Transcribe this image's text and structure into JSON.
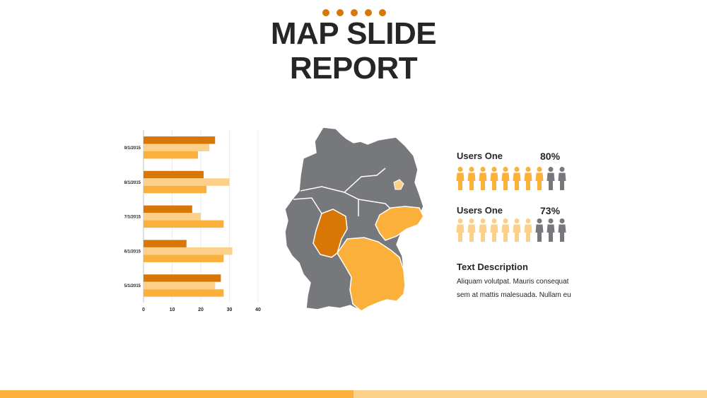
{
  "slide": {
    "title_line1": "MAP SLIDE",
    "title_line2": "REPORT"
  },
  "colors": {
    "dark_orange": "#D97706",
    "orange": "#FBB03B",
    "light_orange": "#FDD08A",
    "gray": "#77787B",
    "title": "#262626"
  },
  "chart_data": {
    "type": "bar",
    "orientation": "horizontal",
    "categories": [
      "9/1/2015",
      "8/1/2015",
      "7/1/2015",
      "6/1/2015",
      "5/1/2015"
    ],
    "series": [
      {
        "values": [
          25,
          21,
          17,
          15,
          27
        ]
      },
      {
        "values": [
          23,
          30,
          20,
          31,
          25
        ]
      },
      {
        "values": [
          19,
          22,
          28,
          28,
          28
        ]
      }
    ],
    "xlim": [
      0,
      40
    ],
    "x_ticks": [
      "0",
      "10",
      "20",
      "30",
      "40"
    ],
    "grid": true
  },
  "stats": [
    {
      "label": "Users One",
      "percent": "80%",
      "filled": 8,
      "total": 10
    },
    {
      "label": "Users One",
      "percent": "73%",
      "filled": 7,
      "total": 10
    }
  ],
  "description": {
    "title": "Text Description",
    "line1": "Aliquam volutpat. Mauris consequat",
    "line2": "sem at mattis malesuada. Nullam eu"
  },
  "map": {
    "highlighted_states": [
      "hesse-region",
      "bavaria-region",
      "saxony-region",
      "berlin-region"
    ]
  }
}
